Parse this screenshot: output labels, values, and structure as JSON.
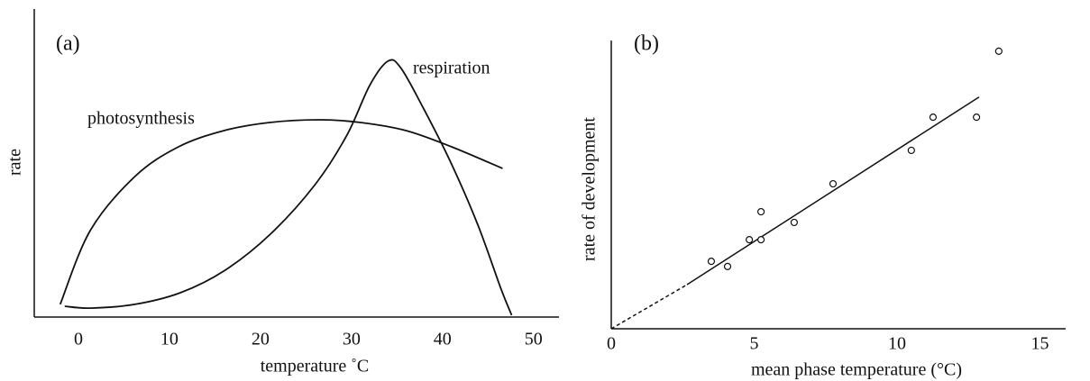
{
  "chart_data": [
    {
      "type": "line",
      "label": "(a)",
      "xlabel": "temperature ˚C",
      "ylabel": "rate",
      "xlim": [
        -4.85,
        52.8
      ],
      "ylim": [
        0,
        114
      ],
      "xticks": [
        0,
        10,
        20,
        30,
        40,
        50
      ],
      "series": [
        {
          "name": "photosynthesis",
          "color": "#111111",
          "x": [
            -2,
            1.3,
            6.2,
            11,
            16,
            21,
            26.5,
            31,
            36,
            41,
            46.6
          ],
          "values": [
            4.7,
            32,
            52,
            63,
            69,
            72,
            73,
            72,
            69,
            63,
            55
          ]
        },
        {
          "name": "respiration",
          "color": "#111111",
          "x": [
            -1.5,
            1.3,
            6.2,
            11.2,
            16.1,
            21.1,
            26,
            29.5,
            32,
            34,
            35.4,
            37.9,
            40.9,
            43.9,
            46.4,
            47.6
          ],
          "values": [
            4,
            3.3,
            4.7,
            9,
            17.3,
            30.7,
            49,
            67.3,
            85.7,
            94.7,
            92.3,
            77.3,
            57.3,
            34,
            10.7,
            0.7
          ]
        }
      ]
    },
    {
      "type": "scatter",
      "label": "(b)",
      "xlabel": "mean phase temperature (°C)",
      "ylabel": "rate of development",
      "xlim": [
        0,
        15.9
      ],
      "ylim": [
        0,
        10
      ],
      "xticks": [
        0,
        5,
        10,
        15
      ],
      "x": [
        3.5,
        4.07,
        4.83,
        5.24,
        5.24,
        6.4,
        7.76,
        10.5,
        11.26,
        12.78,
        13.56
      ],
      "values": [
        2.34,
        2.16,
        3.09,
        3.09,
        4.06,
        3.69,
        5.03,
        6.19,
        7.34,
        7.34,
        9.63
      ],
      "color": "#111111",
      "fit_line": {
        "x": [
          0,
          2.65,
          12.87
        ],
        "values": [
          0,
          1.53,
          8.04
        ]
      }
    }
  ]
}
